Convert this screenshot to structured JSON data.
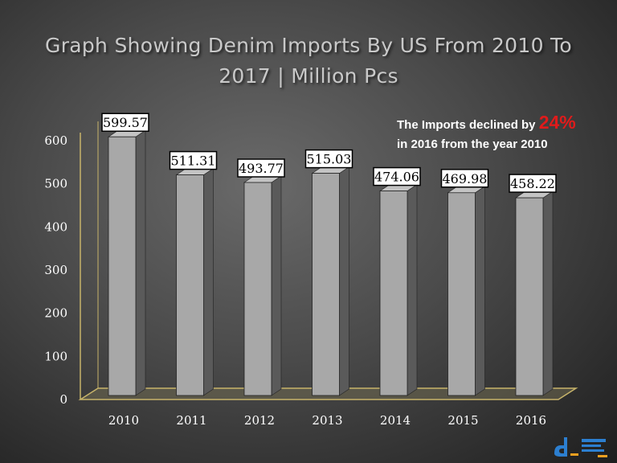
{
  "chart_data": {
    "type": "bar",
    "title": "Graph Showing Denim Imports By US From 2010 To 2017 | Million Pcs",
    "categories": [
      "2010",
      "2011",
      "2012",
      "2013",
      "2014",
      "2015",
      "2016"
    ],
    "values": [
      599.57,
      511.31,
      493.77,
      515.03,
      474.06,
      469.98,
      458.22
    ],
    "data_labels": [
      "599.57",
      "511.31",
      "493.77",
      "515.03",
      "474.06",
      "469.98",
      "458.22"
    ],
    "yticks": [
      "0",
      "100",
      "200",
      "300",
      "400",
      "500",
      "600"
    ],
    "ylim": [
      0,
      600
    ],
    "xlabel": "",
    "ylabel": "",
    "grid": false,
    "colors": {
      "bar_front": "#a8a8a8",
      "bar_side": "#5a5a5a",
      "floor": "#6f6a50",
      "axis": "#c8b46a",
      "label_box": "#ffffff",
      "highlight": "#e01b1b"
    }
  },
  "annotation": {
    "line1": "The Imports declined by ",
    "percent": "24%",
    "line2": "in 2016 from the year 2010"
  },
  "logo": {
    "icon": "denim-logo-icon"
  }
}
